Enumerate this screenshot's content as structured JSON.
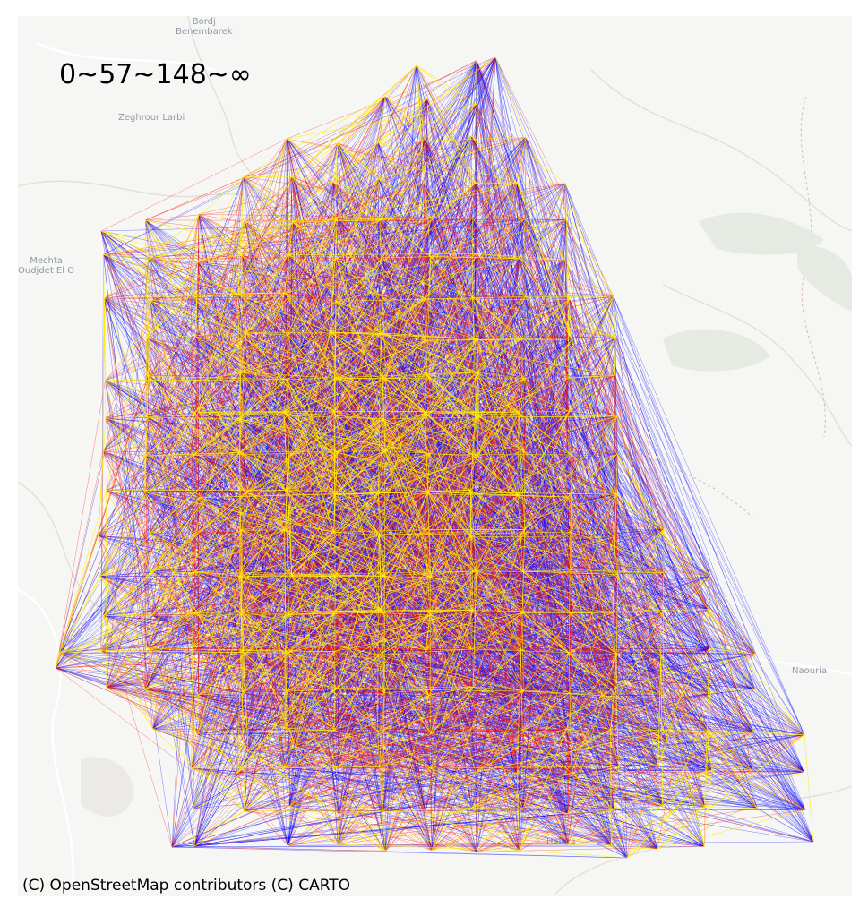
{
  "legend_title": "0~57~148~∞",
  "attribution": "(C) OpenStreetMap contributors (C) CARTO",
  "place_labels": {
    "bordj": "Bordj\nBenembarek",
    "zeghrour": "Zeghrour Larbi",
    "mechta": "Mechta\nOudjdet El O",
    "naouria": "Naouria",
    "haidra": "Haidra"
  },
  "colors": {
    "band_low": "#ffee00",
    "band_mid": "#ff1a00",
    "band_high": "#0000ff",
    "basemap_bg": "#f6f6f4",
    "road_major": "#ffffff",
    "road_minor": "#e4e1dc",
    "park": "#e3e9e1",
    "border": "#d7b2b2"
  },
  "distance_bands": [
    "0~57",
    "57~148",
    "148~∞"
  ]
}
